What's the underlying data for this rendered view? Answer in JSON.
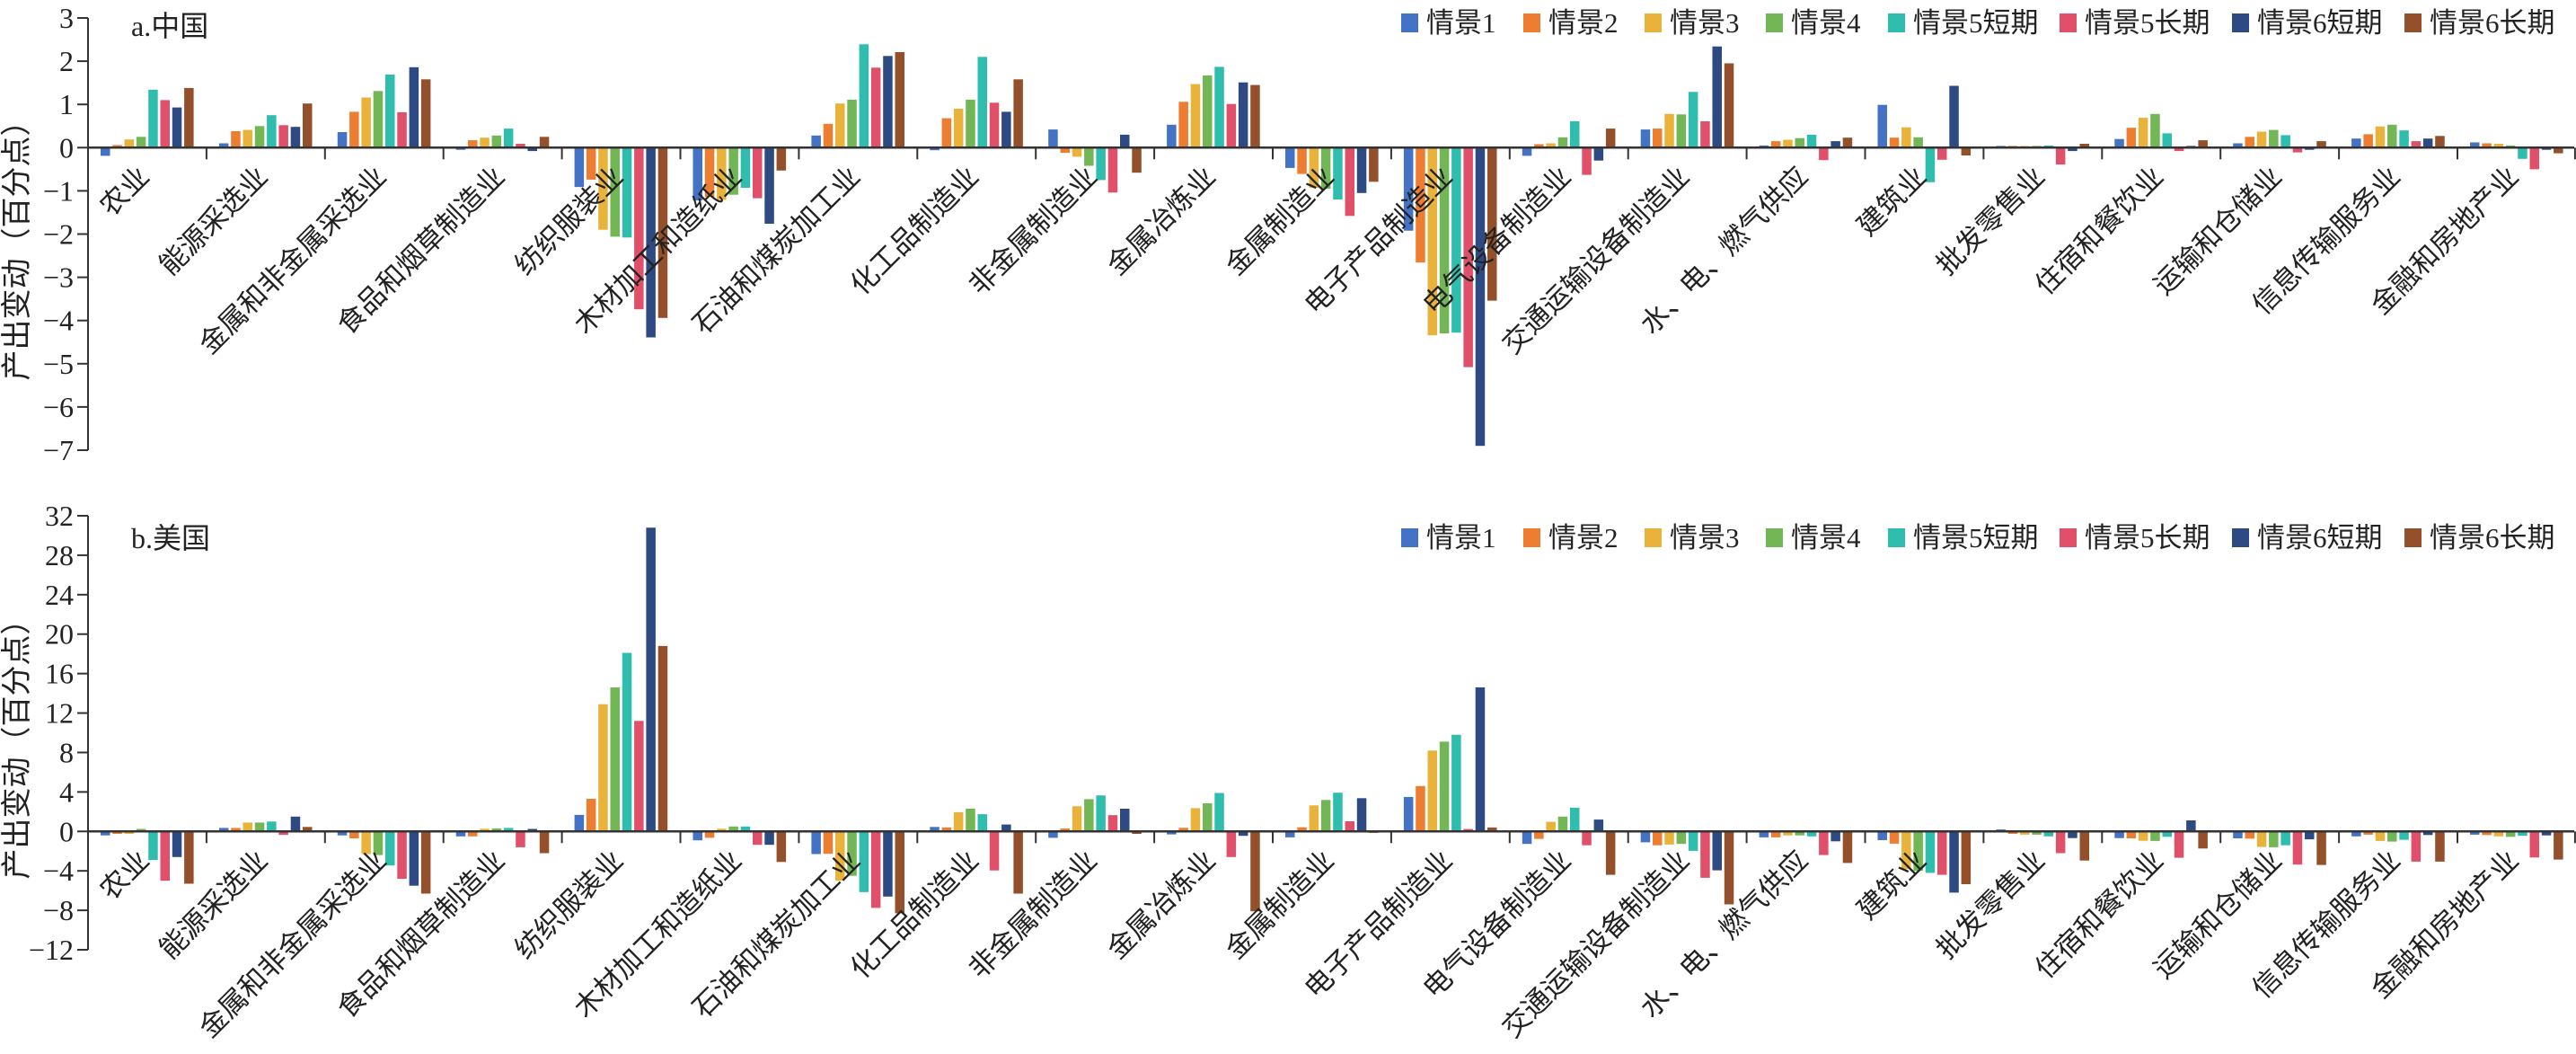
{
  "chart_data": [
    {
      "type": "bar",
      "title": "a.中国",
      "ylabel": "产出变动（百分点）",
      "xlabel": "",
      "ylim": [
        -7,
        3
      ],
      "yticks": [
        3,
        2,
        1,
        0,
        -1,
        -2,
        -3,
        -4,
        -5,
        -6,
        -7
      ],
      "legend_position": "top-right",
      "grid": false,
      "categories": [
        "农业",
        "能源采选业",
        "金属和非金属采选业",
        "食品和烟草制造业",
        "纺织服装业",
        "木材加工和造纸业",
        "石油和煤炭加工业",
        "化工品制造业",
        "非金属制造业",
        "金属冶炼业",
        "金属制造业",
        "电子产品制造业",
        "电气设备制造业",
        "交通运输设备制造业",
        "水、电、燃气供应",
        "建筑业",
        "批发零售业",
        "住宿和餐饮业",
        "运输和仓储业",
        "信息传输服务业",
        "金融和房地产业"
      ],
      "series": [
        {
          "name": "情景1",
          "color": "#4472C4",
          "values": [
            -0.19,
            0.1,
            0.36,
            -0.05,
            -0.91,
            -1.22,
            0.28,
            -0.06,
            0.42,
            0.53,
            -0.47,
            -1.92,
            -0.19,
            0.42,
            0.05,
            0.99,
            0.04,
            0.2,
            0.1,
            0.21,
            0.12
          ]
        },
        {
          "name": "情景2",
          "color": "#ED7D31",
          "values": [
            0.06,
            0.38,
            0.83,
            0.17,
            -0.74,
            -1.14,
            0.55,
            0.68,
            -0.12,
            1.06,
            -0.61,
            -2.66,
            0.08,
            0.44,
            0.15,
            0.23,
            0.04,
            0.46,
            0.25,
            0.31,
            0.1
          ]
        },
        {
          "name": "情景3",
          "color": "#E9B23A",
          "values": [
            0.19,
            0.41,
            1.16,
            0.23,
            -1.9,
            -1.21,
            1.02,
            0.9,
            -0.21,
            1.47,
            -0.93,
            -4.34,
            0.1,
            0.78,
            0.18,
            0.47,
            0.04,
            0.69,
            0.37,
            0.49,
            0.09
          ]
        },
        {
          "name": "情景4",
          "color": "#72B656",
          "values": [
            0.25,
            0.5,
            1.31,
            0.28,
            -2.06,
            -1.09,
            1.11,
            1.11,
            -0.42,
            1.67,
            -0.95,
            -4.3,
            0.24,
            0.77,
            0.22,
            0.24,
            0.04,
            0.78,
            0.41,
            0.53,
            0.05
          ]
        },
        {
          "name": "情景5短期",
          "color": "#2FBEAE",
          "values": [
            1.34,
            0.75,
            1.69,
            0.44,
            -2.08,
            -0.93,
            2.39,
            2.1,
            -0.75,
            1.87,
            -1.2,
            -4.28,
            0.61,
            1.29,
            0.3,
            -0.8,
            0.05,
            0.33,
            0.29,
            0.4,
            -0.26
          ]
        },
        {
          "name": "情景5长期",
          "color": "#E0506A",
          "values": [
            1.1,
            0.52,
            0.82,
            0.09,
            -3.74,
            -1.17,
            1.85,
            1.04,
            -1.04,
            1.01,
            -1.58,
            -5.08,
            -0.63,
            0.61,
            -0.29,
            -0.28,
            -0.39,
            -0.08,
            -0.11,
            0.15,
            -0.5
          ]
        },
        {
          "name": "情景6短期",
          "color": "#2E4A82",
          "values": [
            0.93,
            0.48,
            1.86,
            -0.08,
            -4.39,
            -1.76,
            2.12,
            0.83,
            0.3,
            1.51,
            -1.05,
            -6.9,
            -0.3,
            2.34,
            0.15,
            1.43,
            -0.08,
            0.04,
            -0.05,
            0.21,
            -0.05
          ]
        },
        {
          "name": "情景6长期",
          "color": "#93502A",
          "values": [
            1.38,
            1.02,
            1.58,
            0.25,
            -3.94,
            -0.53,
            2.21,
            1.58,
            -0.58,
            1.45,
            -0.79,
            -3.54,
            0.44,
            1.95,
            0.23,
            -0.18,
            0.09,
            0.17,
            0.15,
            0.27,
            -0.13
          ]
        }
      ]
    },
    {
      "type": "bar",
      "title": "b.美国",
      "ylabel": "产出变动（百分点）",
      "xlabel": "",
      "ylim": [
        -12,
        32
      ],
      "yticks": [
        32,
        28,
        24,
        20,
        16,
        12,
        8,
        4,
        0,
        -4,
        -8,
        -12
      ],
      "legend_position": "top-right",
      "grid": false,
      "categories": [
        "农业",
        "能源采选业",
        "金属和非金属采选业",
        "食品和烟草制造业",
        "纺织服装业",
        "木材加工和造纸业",
        "石油和煤炭加工业",
        "化工品制造业",
        "非金属制造业",
        "金属冶炼业",
        "金属制造业",
        "电子产品制造业",
        "电气设备制造业",
        "交通运输设备制造业",
        "水、电、燃气供应",
        "建筑业",
        "批发零售业",
        "住宿和餐饮业",
        "运输和仓储业",
        "信息传输服务业",
        "金融和房地产业"
      ],
      "series": [
        {
          "name": "情景1",
          "color": "#4472C4",
          "values": [
            -0.4,
            0.35,
            -0.4,
            -0.5,
            1.67,
            -0.9,
            -2.3,
            0.45,
            -0.65,
            -0.3,
            -0.6,
            3.5,
            -1.27,
            -1.1,
            -0.6,
            -0.88,
            0.2,
            -0.67,
            -0.7,
            -0.5,
            -0.33
          ]
        },
        {
          "name": "情景2",
          "color": "#ED7D31",
          "values": [
            -0.25,
            0.35,
            -0.7,
            -0.5,
            3.3,
            -0.65,
            -2.27,
            0.4,
            0.3,
            0.36,
            0.42,
            4.6,
            -0.76,
            -1.4,
            -0.6,
            -1.24,
            -0.25,
            -0.7,
            -0.73,
            -0.33,
            -0.36
          ]
        },
        {
          "name": "情景3",
          "color": "#E9B23A",
          "values": [
            -0.25,
            0.9,
            -2.3,
            0.27,
            12.9,
            0.27,
            -5.0,
            1.95,
            2.55,
            2.36,
            2.64,
            8.2,
            0.97,
            -1.33,
            -0.4,
            -3.8,
            -0.33,
            -0.95,
            -1.58,
            -0.97,
            -0.5
          ]
        },
        {
          "name": "情景4",
          "color": "#72B656",
          "values": [
            0.25,
            0.9,
            -2.4,
            0.3,
            14.6,
            0.5,
            -4.5,
            2.3,
            3.27,
            2.85,
            3.19,
            9.1,
            1.5,
            -1.27,
            -0.4,
            -4.0,
            -0.33,
            -0.97,
            -1.6,
            -1.03,
            -0.55
          ]
        },
        {
          "name": "情景5短期",
          "color": "#2FBEAE",
          "values": [
            -2.9,
            1.0,
            -3.45,
            0.35,
            18.1,
            0.5,
            -6.15,
            1.75,
            3.65,
            3.9,
            3.92,
            9.8,
            2.4,
            -1.97,
            -0.5,
            -4.2,
            -0.5,
            -0.55,
            -1.4,
            -0.85,
            -0.45
          ]
        },
        {
          "name": "情景5长期",
          "color": "#E0506A",
          "values": [
            -5.0,
            -0.35,
            -4.8,
            -1.6,
            11.2,
            -1.36,
            -7.75,
            -3.95,
            1.65,
            -2.6,
            1.03,
            0.24,
            -1.4,
            -4.7,
            -2.4,
            -4.4,
            -2.2,
            -2.67,
            -3.36,
            -3.06,
            -2.64
          ]
        },
        {
          "name": "情景6短期",
          "color": "#2E4A82",
          "values": [
            -2.6,
            1.5,
            -5.5,
            0.25,
            30.8,
            -1.36,
            -6.6,
            0.7,
            2.3,
            -0.45,
            3.37,
            14.6,
            1.2,
            -3.94,
            -1.0,
            -6.2,
            -0.67,
            1.12,
            -0.8,
            -0.36,
            -0.4
          ]
        },
        {
          "name": "情景6长期",
          "color": "#93502A",
          "values": [
            -5.3,
            0.45,
            -6.3,
            -2.2,
            18.8,
            -3.1,
            -8.3,
            -6.3,
            -0.25,
            -8.1,
            -0.15,
            0.4,
            -4.4,
            -7.4,
            -3.2,
            -5.35,
            -2.95,
            -1.73,
            -3.4,
            -3.06,
            -2.85
          ]
        }
      ]
    }
  ]
}
